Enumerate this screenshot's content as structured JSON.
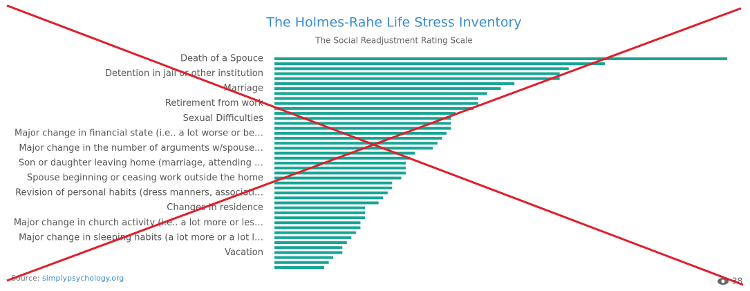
{
  "chart_data": {
    "type": "bar",
    "orientation": "horizontal",
    "title": "The Holmes-Rahe Life Stress Inventory",
    "subtitle": "The Social Readjustment Rating Scale",
    "categories": [
      "Death of a Spouce",
      null,
      null,
      "Detention in jail or other institution",
      null,
      null,
      "Marriage",
      null,
      null,
      "Retirement from work",
      null,
      null,
      "Sexual Difficulties",
      null,
      null,
      "Major change in financial state (i.e.. a lot worse or be…",
      null,
      null,
      "Major change in the number of arguments w/spouse…",
      null,
      null,
      "Son or daughter leaving home (marriage, attending …",
      null,
      null,
      "Spouse beginning or ceasing work outside the home",
      null,
      null,
      "Revision of personal habits (dress manners, associati…",
      null,
      null,
      "Changes in residence",
      null,
      null,
      "Major change in church activity (i.e.. a lot more or les…",
      null,
      null,
      "Major change in sleeping habits (a lot more or a lot l…",
      null,
      null,
      "Vacation",
      null,
      null,
      null
    ],
    "values": [
      100,
      73,
      65,
      63,
      63,
      53,
      50,
      47,
      45,
      45,
      44,
      40,
      39,
      39,
      39,
      38,
      37,
      36,
      35,
      31,
      30,
      29,
      29,
      29,
      28,
      26,
      26,
      25,
      24,
      23,
      20,
      20,
      20,
      19,
      19,
      18,
      17,
      16,
      15,
      15,
      13,
      12,
      11
    ],
    "color": "#17a596",
    "xlim": [
      0,
      100
    ],
    "source_prefix": "Source: ",
    "source_link": "simplypsychology.org",
    "views": "38"
  }
}
